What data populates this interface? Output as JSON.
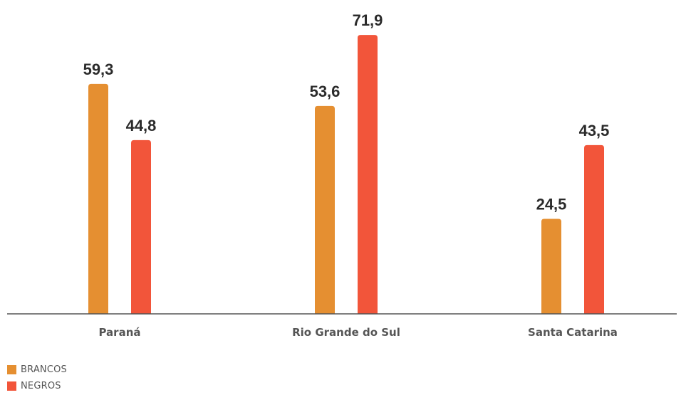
{
  "chart_data": {
    "type": "bar",
    "categories": [
      "Paraná",
      "Rio Grande do Sul",
      "Santa Catarina"
    ],
    "series": [
      {
        "name": "BRANCOS",
        "color": "#e58f31",
        "values": [
          59.3,
          53.6,
          24.5
        ],
        "labels": [
          "59,3",
          "53,6",
          "24,5"
        ]
      },
      {
        "name": "NEGROS",
        "color": "#f2553a",
        "values": [
          44.8,
          71.9,
          43.5
        ],
        "labels": [
          "44,8",
          "71,9",
          "43,5"
        ]
      }
    ],
    "ylim": [
      0,
      80
    ],
    "grid": false,
    "legend_position": "bottom-left"
  }
}
